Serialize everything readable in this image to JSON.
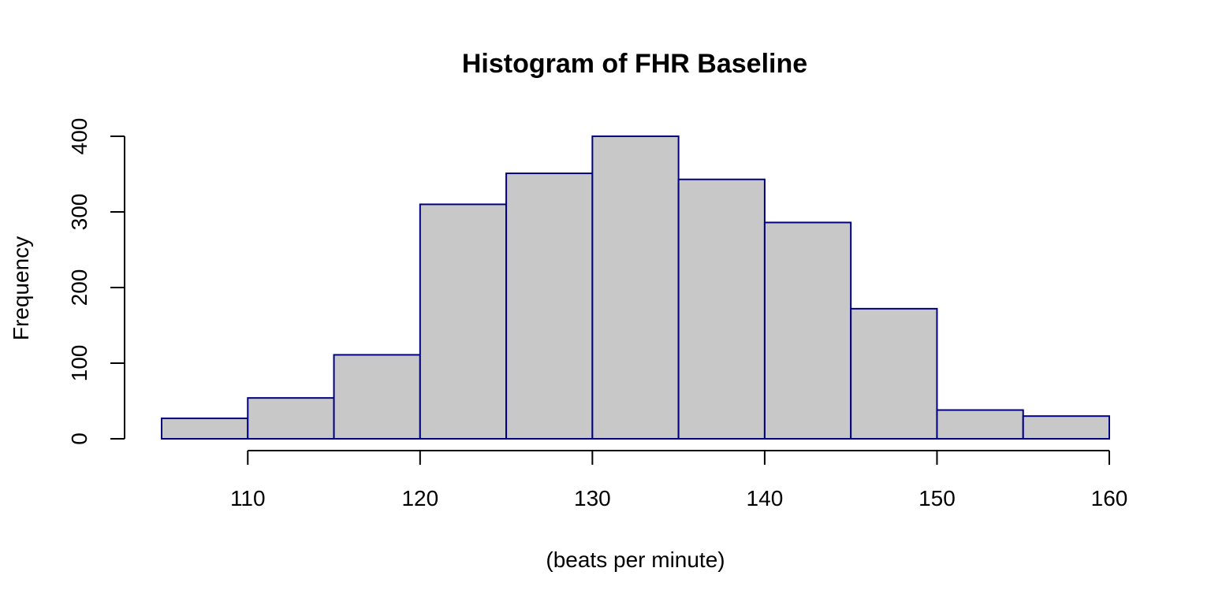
{
  "chart_data": {
    "type": "bar",
    "title": "Histogram of FHR Baseline",
    "xlabel": "(beats per minute)",
    "ylabel": "Frequency",
    "bin_edges": [
      105,
      110,
      115,
      120,
      125,
      130,
      135,
      140,
      145,
      150,
      155,
      160
    ],
    "values": [
      27,
      54,
      111,
      310,
      351,
      400,
      343,
      286,
      172,
      38,
      30
    ],
    "xlim": [
      105,
      160
    ],
    "ylim": [
      0,
      400
    ],
    "x_ticks": [
      110,
      120,
      130,
      140,
      150,
      160
    ],
    "y_ticks": [
      0,
      100,
      200,
      300,
      400
    ],
    "x_tick_labels": [
      "110",
      "120",
      "130",
      "140",
      "150",
      "160"
    ],
    "y_tick_labels": [
      "0",
      "100",
      "200",
      "300",
      "400"
    ],
    "bar_fill": "#c8c8c8",
    "bar_stroke": "#000080",
    "grid": false
  }
}
